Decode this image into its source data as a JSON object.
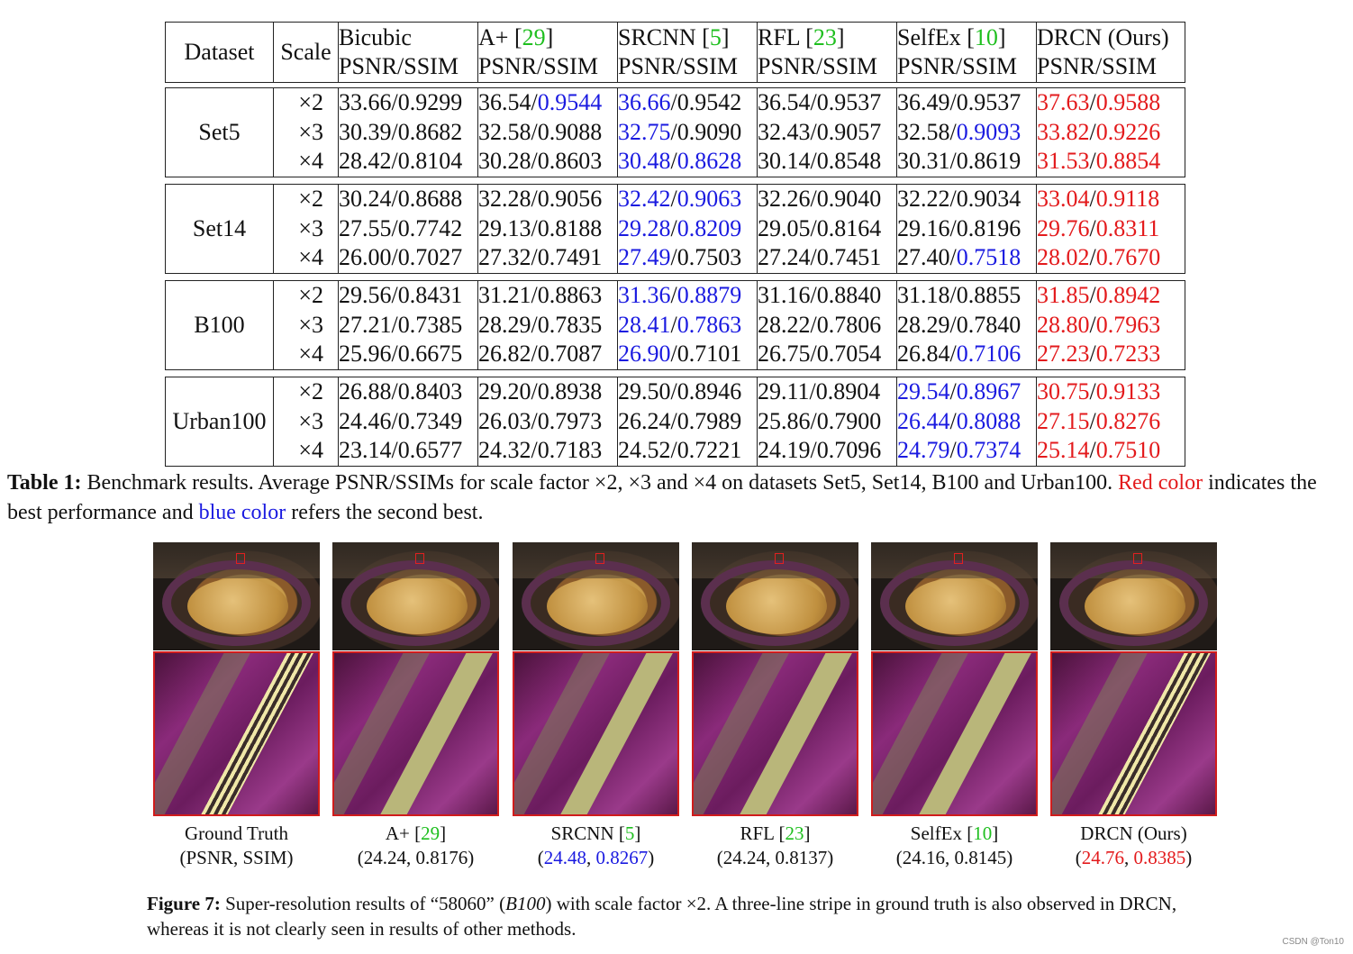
{
  "table": {
    "header": {
      "dataset": "Dataset",
      "scale": "Scale",
      "methods": [
        {
          "name": "Bicubic",
          "cite": "",
          "metric": "PSNR/SSIM"
        },
        {
          "name": "A+ [",
          "cite": "29",
          "close": "]",
          "metric": "PSNR/SSIM"
        },
        {
          "name": "SRCNN [",
          "cite": "5",
          "close": "]",
          "metric": "PSNR/SSIM"
        },
        {
          "name": "RFL [",
          "cite": "23",
          "close": "]",
          "metric": "PSNR/SSIM"
        },
        {
          "name": "SelfEx [",
          "cite": "10",
          "close": "]",
          "metric": "PSNR/SSIM"
        },
        {
          "name": "DRCN (Ours)",
          "cite": "",
          "metric": "PSNR/SSIM"
        }
      ]
    },
    "groups": [
      {
        "dataset": "Set5",
        "rows": [
          {
            "scale": "×2",
            "cells": [
              [
                "33.66",
                "0.9299",
                "",
                ""
              ],
              [
                "36.54",
                "0.9544",
                "",
                "b"
              ],
              [
                "36.66",
                "0.9542",
                "b",
                ""
              ],
              [
                "36.54",
                "0.9537",
                "",
                ""
              ],
              [
                "36.49",
                "0.9537",
                "",
                ""
              ],
              [
                "37.63",
                "0.9588",
                "r",
                "r"
              ]
            ]
          },
          {
            "scale": "×3",
            "cells": [
              [
                "30.39",
                "0.8682",
                "",
                ""
              ],
              [
                "32.58",
                "0.9088",
                "",
                ""
              ],
              [
                "32.75",
                "0.9090",
                "b",
                ""
              ],
              [
                "32.43",
                "0.9057",
                "",
                ""
              ],
              [
                "32.58",
                "0.9093",
                "",
                "b"
              ],
              [
                "33.82",
                "0.9226",
                "r",
                "r"
              ]
            ]
          },
          {
            "scale": "×4",
            "cells": [
              [
                "28.42",
                "0.8104",
                "",
                ""
              ],
              [
                "30.28",
                "0.8603",
                "",
                ""
              ],
              [
                "30.48",
                "0.8628",
                "b",
                "b"
              ],
              [
                "30.14",
                "0.8548",
                "",
                ""
              ],
              [
                "30.31",
                "0.8619",
                "",
                ""
              ],
              [
                "31.53",
                "0.8854",
                "r",
                "r"
              ]
            ]
          }
        ]
      },
      {
        "dataset": "Set14",
        "rows": [
          {
            "scale": "×2",
            "cells": [
              [
                "30.24",
                "0.8688",
                "",
                ""
              ],
              [
                "32.28",
                "0.9056",
                "",
                ""
              ],
              [
                "32.42",
                "0.9063",
                "b",
                "b"
              ],
              [
                "32.26",
                "0.9040",
                "",
                ""
              ],
              [
                "32.22",
                "0.9034",
                "",
                ""
              ],
              [
                "33.04",
                "0.9118",
                "r",
                "r"
              ]
            ]
          },
          {
            "scale": "×3",
            "cells": [
              [
                "27.55",
                "0.7742",
                "",
                ""
              ],
              [
                "29.13",
                "0.8188",
                "",
                ""
              ],
              [
                "29.28",
                "0.8209",
                "b",
                "b"
              ],
              [
                "29.05",
                "0.8164",
                "",
                ""
              ],
              [
                "29.16",
                "0.8196",
                "",
                ""
              ],
              [
                "29.76",
                "0.8311",
                "r",
                "r"
              ]
            ]
          },
          {
            "scale": "×4",
            "cells": [
              [
                "26.00",
                "0.7027",
                "",
                ""
              ],
              [
                "27.32",
                "0.7491",
                "",
                ""
              ],
              [
                "27.49",
                "0.7503",
                "b",
                ""
              ],
              [
                "27.24",
                "0.7451",
                "",
                ""
              ],
              [
                "27.40",
                "0.7518",
                "",
                "b"
              ],
              [
                "28.02",
                "0.7670",
                "r",
                "r"
              ]
            ]
          }
        ]
      },
      {
        "dataset": "B100",
        "rows": [
          {
            "scale": "×2",
            "cells": [
              [
                "29.56",
                "0.8431",
                "",
                ""
              ],
              [
                "31.21",
                "0.8863",
                "",
                ""
              ],
              [
                "31.36",
                "0.8879",
                "b",
                "b"
              ],
              [
                "31.16",
                "0.8840",
                "",
                ""
              ],
              [
                "31.18",
                "0.8855",
                "",
                ""
              ],
              [
                "31.85",
                "0.8942",
                "r",
                "r"
              ]
            ]
          },
          {
            "scale": "×3",
            "cells": [
              [
                "27.21",
                "0.7385",
                "",
                ""
              ],
              [
                "28.29",
                "0.7835",
                "",
                ""
              ],
              [
                "28.41",
                "0.7863",
                "b",
                "b"
              ],
              [
                "28.22",
                "0.7806",
                "",
                ""
              ],
              [
                "28.29",
                "0.7840",
                "",
                ""
              ],
              [
                "28.80",
                "0.7963",
                "r",
                "r"
              ]
            ]
          },
          {
            "scale": "×4",
            "cells": [
              [
                "25.96",
                "0.6675",
                "",
                ""
              ],
              [
                "26.82",
                "0.7087",
                "",
                ""
              ],
              [
                "26.90",
                "0.7101",
                "b",
                ""
              ],
              [
                "26.75",
                "0.7054",
                "",
                ""
              ],
              [
                "26.84",
                "0.7106",
                "",
                "b"
              ],
              [
                "27.23",
                "0.7233",
                "r",
                "r"
              ]
            ]
          }
        ]
      },
      {
        "dataset": "Urban100",
        "rows": [
          {
            "scale": "×2",
            "cells": [
              [
                "26.88",
                "0.8403",
                "",
                ""
              ],
              [
                "29.20",
                "0.8938",
                "",
                ""
              ],
              [
                "29.50",
                "0.8946",
                "",
                ""
              ],
              [
                "29.11",
                "0.8904",
                "",
                ""
              ],
              [
                "29.54",
                "0.8967",
                "b",
                "b"
              ],
              [
                "30.75",
                "0.9133",
                "r",
                "r"
              ]
            ]
          },
          {
            "scale": "×3",
            "cells": [
              [
                "24.46",
                "0.7349",
                "",
                ""
              ],
              [
                "26.03",
                "0.7973",
                "",
                ""
              ],
              [
                "26.24",
                "0.7989",
                "",
                ""
              ],
              [
                "25.86",
                "0.7900",
                "",
                ""
              ],
              [
                "26.44",
                "0.8088",
                "b",
                "b"
              ],
              [
                "27.15",
                "0.8276",
                "r",
                "r"
              ]
            ]
          },
          {
            "scale": "×4",
            "cells": [
              [
                "23.14",
                "0.6577",
                "",
                ""
              ],
              [
                "24.32",
                "0.7183",
                "",
                ""
              ],
              [
                "24.52",
                "0.7221",
                "",
                ""
              ],
              [
                "24.19",
                "0.7096",
                "",
                ""
              ],
              [
                "24.79",
                "0.7374",
                "b",
                "b"
              ],
              [
                "25.14",
                "0.7510",
                "r",
                "r"
              ]
            ]
          }
        ]
      }
    ]
  },
  "table_caption": {
    "label": "Table 1:",
    "text1": "Benchmark results.  Average PSNR/SSIMs for scale factor ×2, ×3 and ×4 on datasets Set5, Set14, B100 and Urban100.  ",
    "red_text": "Red color",
    "text2": " indicates the best performance and ",
    "blue_text": "blue color",
    "text3": " refers the second best."
  },
  "figure": {
    "panels": [
      {
        "name": "Ground Truth",
        "cite": "",
        "close": "",
        "metrics": "(PSNR, SSIM)",
        "psnr": "",
        "ssim": "",
        "color": ""
      },
      {
        "name": "A+ [",
        "cite": "29",
        "close": "]",
        "metrics": "",
        "psnr": "24.24",
        "ssim": "0.8176",
        "color": ""
      },
      {
        "name": "SRCNN [",
        "cite": "5",
        "close": "]",
        "metrics": "",
        "psnr": "24.48",
        "ssim": "0.8267",
        "color": "blue"
      },
      {
        "name": "RFL [",
        "cite": "23",
        "close": "]",
        "metrics": "",
        "psnr": "24.24",
        "ssim": "0.8137",
        "color": ""
      },
      {
        "name": "SelfEx [",
        "cite": "10",
        "close": "]",
        "metrics": "",
        "psnr": "24.16",
        "ssim": "0.8145",
        "color": ""
      },
      {
        "name": "DRCN (Ours)",
        "cite": "",
        "close": "",
        "metrics": "",
        "psnr": "24.76",
        "ssim": "0.8385",
        "color": "red"
      }
    ],
    "caption": {
      "label": "Figure 7:",
      "text1": " Super-resolution results of “58060” (",
      "italic": "B100",
      "text2": ") with scale factor ×2. A three-line stripe in ground truth is also observed in DRCN, whereas it is not clearly seen in results of other methods."
    }
  },
  "watermark": "CSDN @Ton10"
}
